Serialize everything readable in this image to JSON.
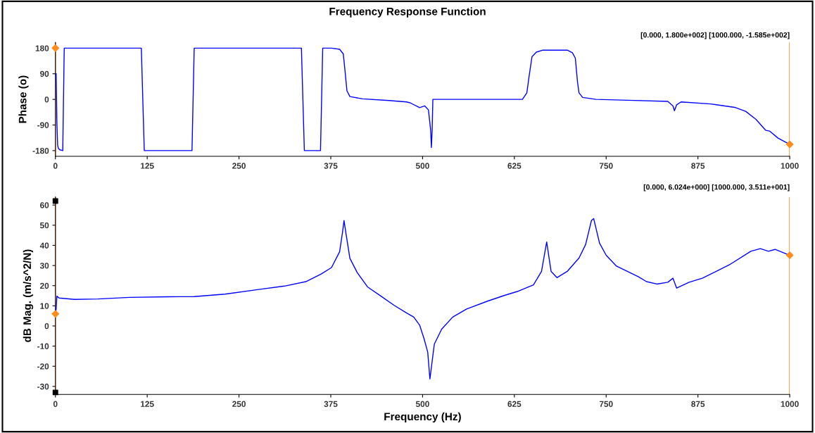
{
  "chart_data": [
    {
      "type": "line",
      "title": "Frequency Response Function",
      "ylabel": "Phase (o)",
      "annotations": [
        "[0.000, 1.800e+002] [1000.000, -1.585e+002]"
      ],
      "xlim": [
        0,
        1000
      ],
      "xticks": [
        0,
        125,
        250,
        375,
        500,
        625,
        750,
        875,
        1000
      ],
      "ylim": [
        -200,
        200
      ],
      "yticks": [
        -180,
        -90,
        0,
        90,
        180
      ],
      "grid": false,
      "legend": false,
      "ref_lines": [
        {
          "axis": "x",
          "value": 0,
          "color": "#ff8c1a"
        },
        {
          "axis": "x",
          "value": 1000,
          "color": "#ff8c1a"
        }
      ],
      "series": [
        {
          "color": "#0000ff",
          "x": [
            1,
            2,
            3,
            4,
            6,
            10,
            12,
            117,
            121,
            186,
            189,
            335,
            339,
            361,
            364,
            376,
            387,
            392,
            394,
            397,
            401,
            418,
            454,
            478,
            483,
            496,
            503,
            508,
            511,
            512,
            513,
            514,
            636,
            642,
            645,
            649,
            655,
            664,
            697,
            704,
            708,
            711,
            713,
            718,
            736,
            779,
            834,
            841,
            843,
            846,
            852,
            892,
            925,
            940,
            954,
            967,
            973,
            984,
            1000
          ],
          "values": [
            90,
            -80,
            -160,
            -172,
            -177,
            -180,
            180,
            180,
            -180,
            -180,
            180,
            180,
            -180,
            -180,
            180,
            180,
            176,
            160,
            110,
            30,
            10,
            2,
            -4,
            -9,
            -12,
            -29,
            -23,
            -37,
            -108,
            -169,
            -112,
            0,
            0,
            23,
            80,
            150,
            166,
            173,
            173,
            164,
            145,
            61,
            23,
            7,
            0,
            -3,
            -7,
            -23,
            -40,
            -19,
            -9,
            -16,
            -28,
            -42,
            -70,
            -108,
            -112,
            -136,
            -158
          ]
        },
        {
          "type": "scatter",
          "color": "#ff8c1a",
          "marker": "diamond",
          "x": [
            0,
            1000
          ],
          "values": [
            180,
            -158
          ]
        }
      ]
    },
    {
      "type": "line",
      "xlabel": "Frequency (Hz)",
      "ylabel": "dB Mag. (m/s^2/N)",
      "annotations": [
        "[0.000, 6.024e+000] [1000.000, 3.511e+001]"
      ],
      "xlim": [
        0,
        1000
      ],
      "xticks": [
        0,
        125,
        250,
        375,
        500,
        625,
        750,
        875,
        1000
      ],
      "ylim": [
        -34,
        64
      ],
      "yticks": [
        -30,
        -20,
        -10,
        0,
        10,
        20,
        30,
        40,
        50,
        60
      ],
      "grid": false,
      "legend": false,
      "ref_lines": [
        {
          "axis": "x",
          "value": 0,
          "color": "#ff8c1a"
        },
        {
          "axis": "x",
          "value": 1000,
          "color": "#ff8c1a"
        }
      ],
      "series": [
        {
          "color": "#0000ff",
          "x": [
            0,
            1,
            2,
            5,
            26,
            58,
            101,
            154,
            189,
            231,
            277,
            312,
            341,
            362,
            376,
            387,
            391,
            393,
            396,
            401,
            411,
            425,
            443,
            461,
            478,
            488,
            496,
            502,
            507,
            510,
            516,
            526,
            541,
            560,
            589,
            611,
            629,
            651,
            662,
            669,
            675,
            683,
            697,
            713,
            722,
            730,
            733,
            741,
            750,
            764,
            794,
            805,
            819,
            834,
            841,
            846,
            863,
            881,
            918,
            947,
            960,
            971,
            980,
            1000
          ],
          "values": [
            6.0,
            8.4,
            14.8,
            13.9,
            13.2,
            13.4,
            14.2,
            14.5,
            14.6,
            15.8,
            18.1,
            19.8,
            22,
            25.8,
            29,
            36.8,
            46.5,
            52.3,
            45.2,
            33.6,
            26.5,
            19.4,
            14.9,
            10.3,
            6.5,
            4.4,
            0.4,
            -6.3,
            -13,
            -26.3,
            -9,
            -1.6,
            4.4,
            8.4,
            12.4,
            15.1,
            17.1,
            20.4,
            27.1,
            41.7,
            27.1,
            24,
            27.1,
            33.7,
            40.4,
            52.4,
            53.3,
            41.1,
            35.1,
            29.7,
            24.4,
            22,
            20.8,
            21.7,
            23.7,
            18.8,
            21.7,
            23.7,
            30.4,
            37.1,
            38.4,
            37.1,
            38,
            35.1
          ]
        },
        {
          "type": "scatter",
          "color": "#ff8c1a",
          "marker": "diamond",
          "x": [
            0,
            1000
          ],
          "values": [
            6.0,
            35.1
          ]
        },
        {
          "type": "scatter",
          "color": "#000000",
          "marker": "square",
          "x": [
            0,
            0
          ],
          "values": [
            62,
            -33
          ]
        }
      ]
    }
  ]
}
